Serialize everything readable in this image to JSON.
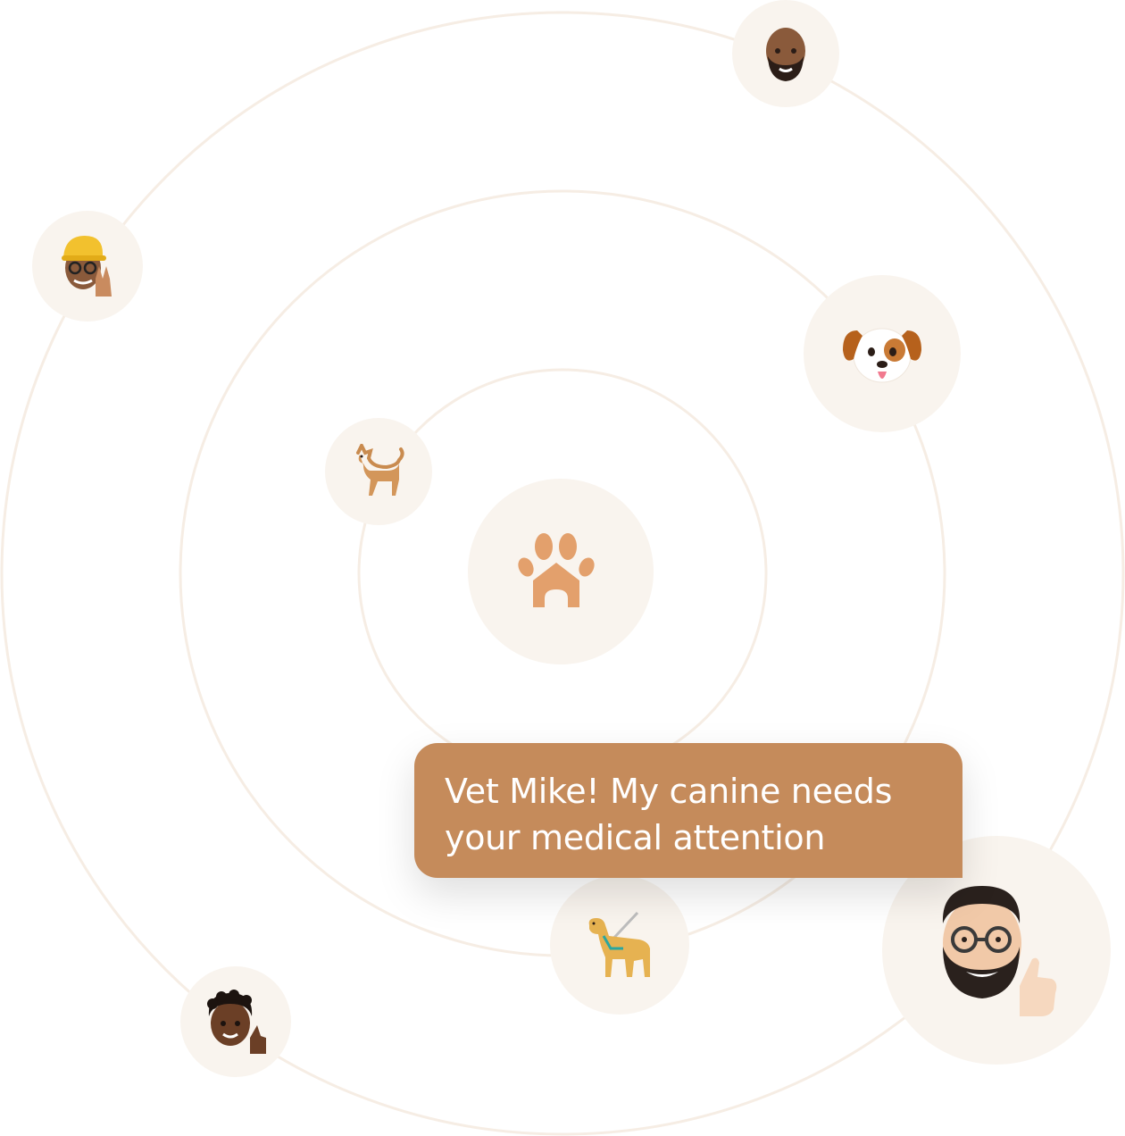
{
  "colors": {
    "background": "#ffffff",
    "orbit": "#f6ede4",
    "node_fill": "#f9f4ee",
    "accent": "#c58b5b",
    "logo": "#e3a06c",
    "bubble_text": "#ffffff"
  },
  "center_logo": {
    "icon": "paw-house-icon"
  },
  "avatars": [
    {
      "name": "avatar-bald-man",
      "icon": "bald-bearded-man-memoji-icon"
    },
    {
      "name": "avatar-cap-peace",
      "icon": "yellow-cap-peace-sign-memoji-icon"
    },
    {
      "name": "avatar-puppy-face",
      "icon": "puppy-face-icon"
    },
    {
      "name": "avatar-dog",
      "icon": "dog-icon"
    },
    {
      "name": "avatar-guide-dog",
      "icon": "guide-dog-icon"
    },
    {
      "name": "avatar-curly-boy",
      "icon": "curly-hair-thumbs-up-memoji-icon"
    },
    {
      "name": "avatar-vet-mike",
      "icon": "bearded-glasses-thumbs-up-memoji-icon"
    }
  ],
  "message": {
    "text": "Vet Mike! My canine needs your medical attention"
  }
}
